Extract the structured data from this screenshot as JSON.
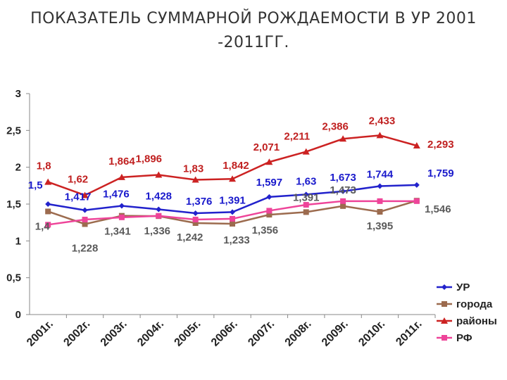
{
  "title_line1": "ПОКАЗАТЕЛЬ СУММАРНОЙ РОЖДАЕМОСТИ В УР 2001",
  "title_line2": "-2011ГГ.",
  "chart_data": {
    "type": "line",
    "title": "ПОКАЗАТЕЛЬ СУММАРНОЙ РОЖДАЕМОСТИ В УР 2001 -2011ГГ.",
    "categories": [
      "2001г.",
      "2002г.",
      "2003г.",
      "2004г.",
      "2005г.",
      "2006г.",
      "2007г.",
      "2008г.",
      "2009г.",
      "2010г.",
      "2011г."
    ],
    "ylim": [
      0,
      3
    ],
    "yticks": [
      "0",
      "0,5",
      "1",
      "1,5",
      "2",
      "2,5",
      "3"
    ],
    "grid": false,
    "legend_position": "bottom-right",
    "series": [
      {
        "name": "УР",
        "color": "#2222cc",
        "marker": "diamond",
        "label_color": "#1a1acc",
        "values": [
          1.5,
          1.417,
          1.476,
          1.428,
          1.376,
          1.391,
          1.597,
          1.63,
          1.673,
          1.744,
          1.759
        ],
        "labels": [
          "1,5",
          "1,417",
          "1,476",
          "1,428",
          "1,376",
          "1,391",
          "1,597",
          "1,63",
          "1,673",
          "1,744",
          "1,759"
        ]
      },
      {
        "name": "города",
        "color": "#9c6b4e",
        "marker": "square",
        "label_color": "#5a5a5a",
        "values": [
          1.4,
          1.228,
          1.341,
          1.336,
          1.242,
          1.233,
          1.356,
          1.391,
          1.473,
          1.395,
          1.546
        ],
        "labels": [
          "1,4",
          "1,228",
          "1,341",
          "1,336",
          "1,242",
          "1,233",
          "1,356",
          "1,391",
          "1,473",
          "1,395",
          "1,546"
        ]
      },
      {
        "name": "районы",
        "color": "#cc2222",
        "marker": "triangle",
        "label_color": "#c02020",
        "values": [
          1.8,
          1.62,
          1.864,
          1.896,
          1.83,
          1.842,
          2.071,
          2.211,
          2.386,
          2.433,
          2.293
        ],
        "labels": [
          "1,8",
          "1,62",
          "1,864",
          "1,896",
          "1,83",
          "1,842",
          "2,071",
          "2,211",
          "2,386",
          "2,433",
          "2,293"
        ]
      },
      {
        "name": "РФ",
        "color": "#ee4499",
        "marker": "square",
        "label_color": "#5a5a5a",
        "values": [
          1.22,
          1.29,
          1.32,
          1.34,
          1.29,
          1.3,
          1.41,
          1.49,
          1.54,
          1.54,
          1.54
        ],
        "labels": []
      }
    ]
  }
}
